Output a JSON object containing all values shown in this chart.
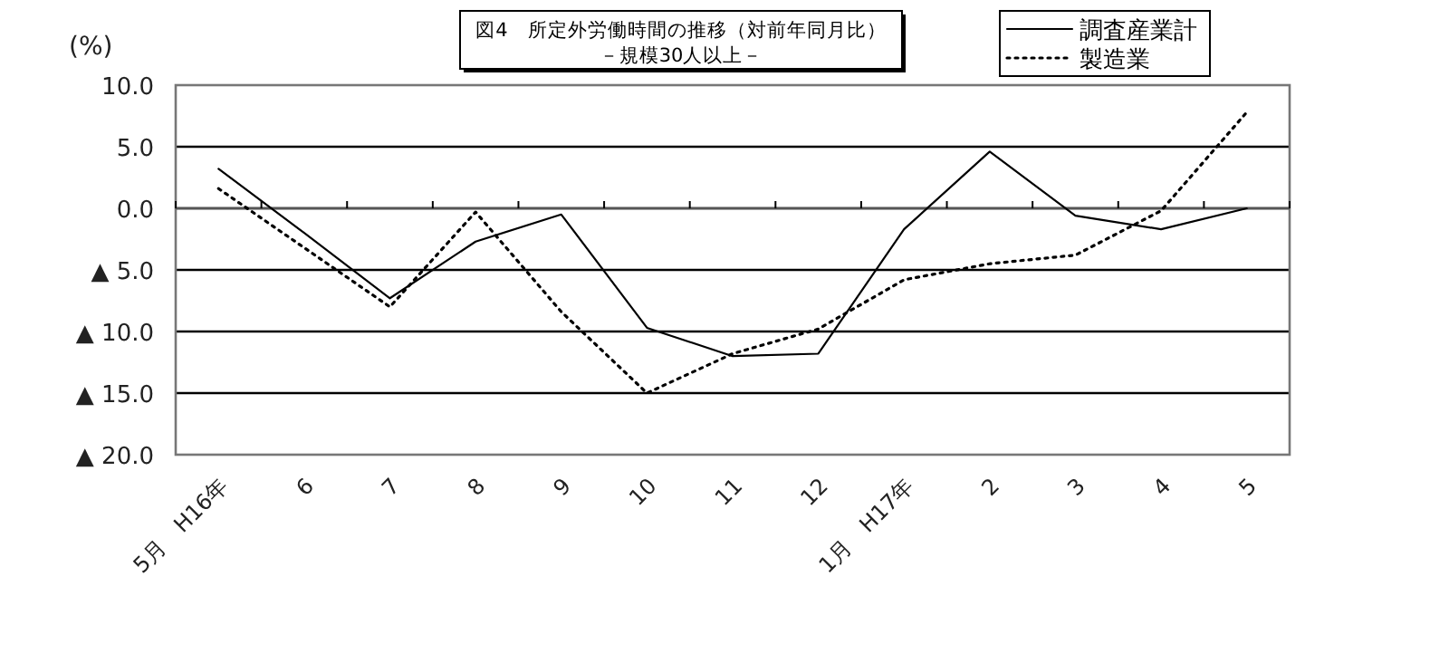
{
  "chart_data": {
    "type": "line",
    "title": "図4　所定外労働時間の推移（対前年同月比）",
    "subtitle": "－規模30人以上－",
    "ylabel": "(%)",
    "categories": [
      "5月　H16年",
      "6",
      "7",
      "8",
      "9",
      "10",
      "11",
      "12",
      "1月　H17年",
      "2",
      "3",
      "4",
      "5"
    ],
    "series": [
      {
        "name": "調査産業計",
        "color": "#000000",
        "line_style": "solid",
        "values": [
          3.2,
          -2.0,
          -7.3,
          -2.7,
          -0.5,
          -9.7,
          -12.0,
          -11.8,
          -1.7,
          4.6,
          -0.6,
          -1.7,
          0.0
        ]
      },
      {
        "name": "製造業",
        "color": "#000000",
        "line_style": "dotted",
        "values": [
          1.6,
          -3.2,
          -8.0,
          -0.3,
          -8.4,
          -15.0,
          -11.8,
          -9.8,
          -5.8,
          -4.5,
          -3.8,
          -0.2,
          7.8
        ]
      }
    ],
    "ylim": [
      -20,
      10
    ],
    "yticks": [
      {
        "value": 10,
        "label": "10.0"
      },
      {
        "value": 5,
        "label": "5.0"
      },
      {
        "value": 0,
        "label": "0.0"
      },
      {
        "value": -5,
        "label": "▲ 5.0"
      },
      {
        "value": -10,
        "label": "▲ 10.0"
      },
      {
        "value": -15,
        "label": "▲ 15.0"
      },
      {
        "value": -20,
        "label": "▲ 20.0"
      }
    ],
    "grid": "y",
    "legend": "top right"
  }
}
